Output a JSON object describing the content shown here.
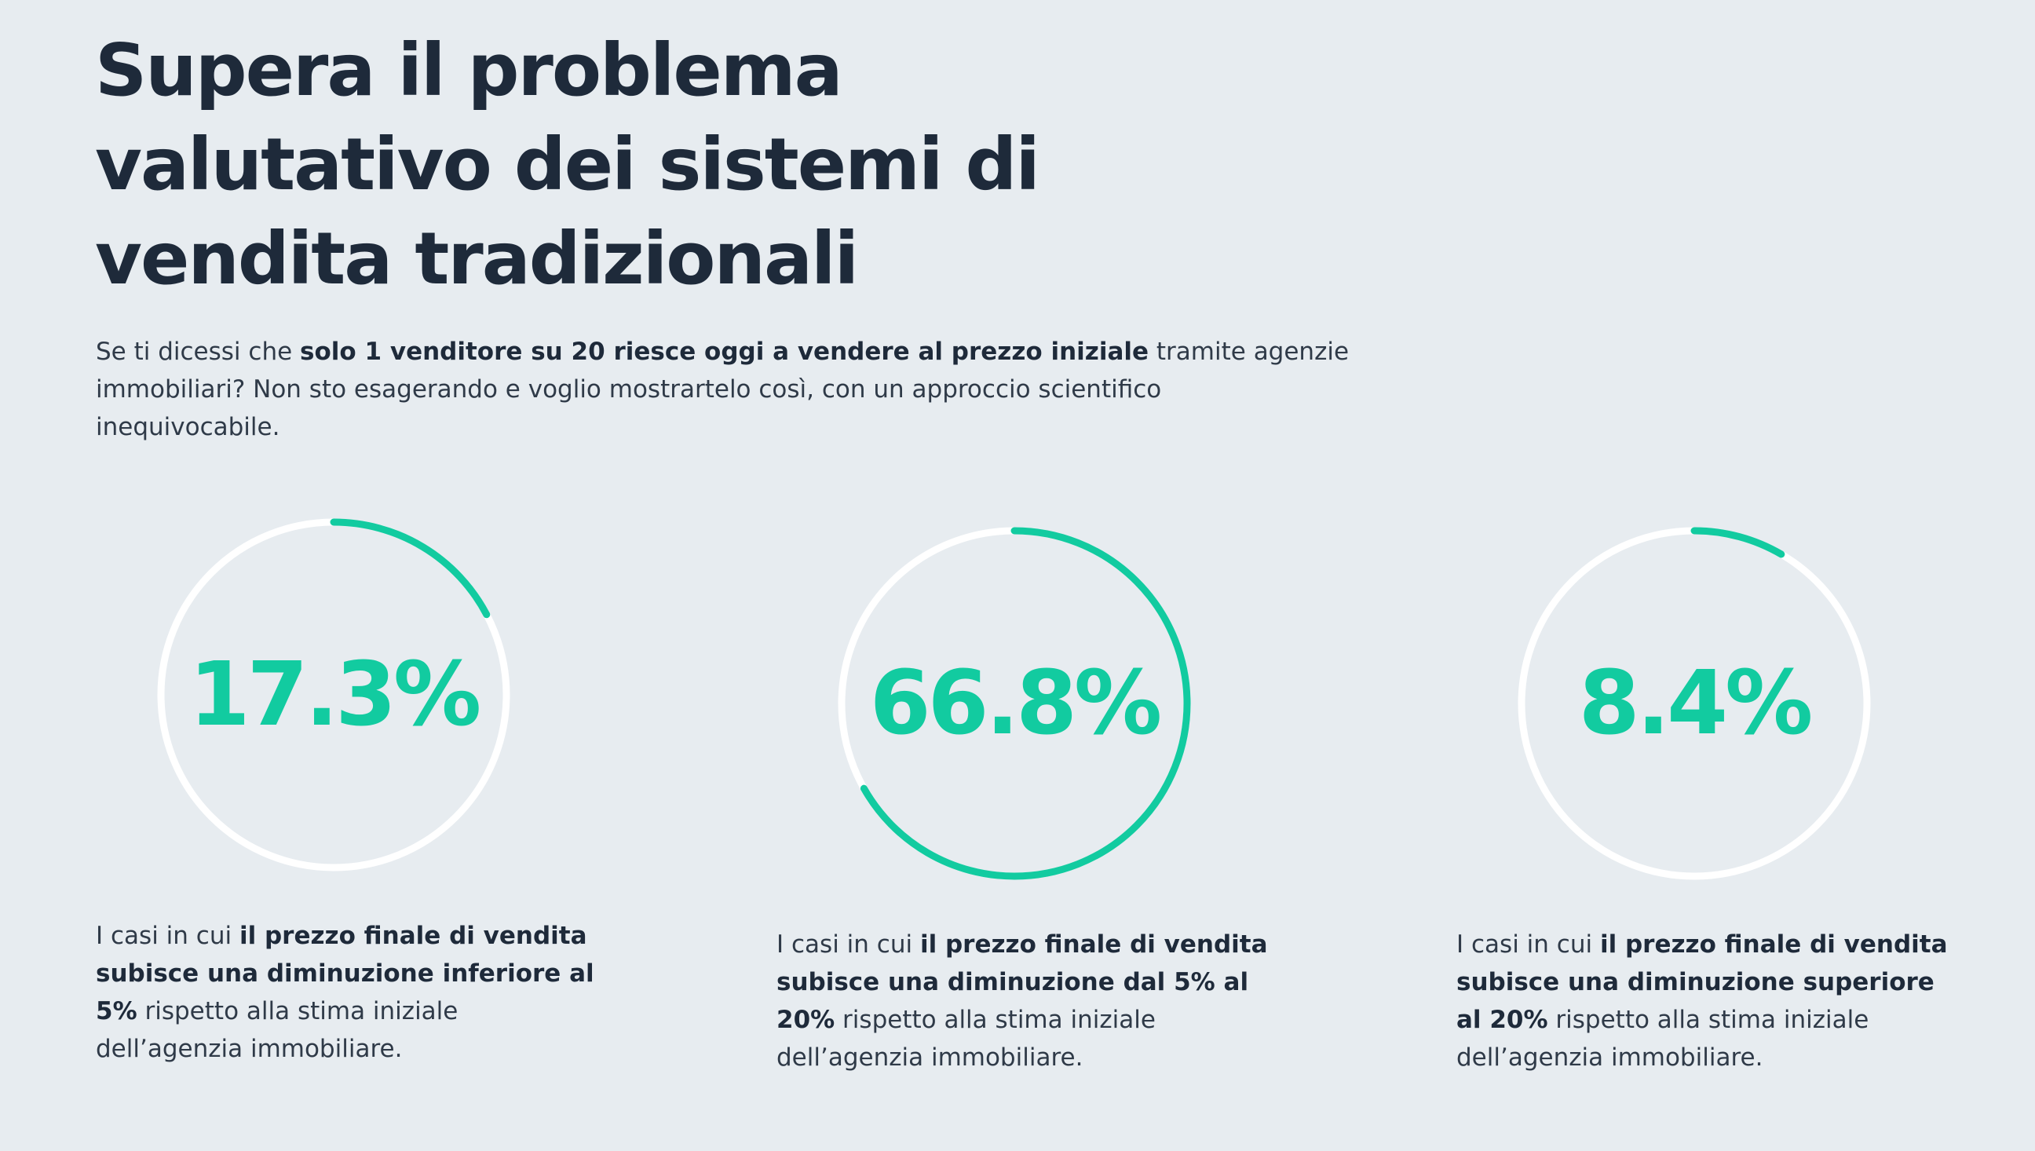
{
  "header": {
    "title_lines": [
      "Supera il problema",
      "valutativo dei sistemi di",
      "vendita tradizionali"
    ]
  },
  "intro": {
    "line1_pre": "Se ti dicessi che ",
    "line1_bold": "solo 1 venditore su 20 riesce oggi a vendere al prezzo iniziale",
    "line1_post": " tramite agenzie",
    "line2": "immobiliari? Non sto esagerando e voglio mostrartelo così, con un approccio scientifico",
    "line3": "inequivocabile."
  },
  "colors": {
    "accent": "#12cba0",
    "ring_track": "#ffffff",
    "background": "#e7ecf0",
    "text_dark": "#1e2a3a"
  },
  "stats": [
    {
      "value": 17.3,
      "label": "17.3%",
      "caption": {
        "l1_pre": "I casi in cui ",
        "l1_bold": "il prezzo finale di vendita",
        "l2_bold": "subisce una diminuzione inferiore al",
        "l3_bold": "5%",
        "l3_post": " rispetto alla stima iniziale",
        "l4": "dell’agenzia immobiliare."
      }
    },
    {
      "value": 66.8,
      "label": "66.8%",
      "caption": {
        "l1_pre": "I casi in cui ",
        "l1_bold": "il prezzo finale di vendita",
        "l2_bold": "subisce una diminuzione dal 5% al",
        "l3_bold": "20%",
        "l3_post": " rispetto alla stima iniziale",
        "l4": "dell’agenzia immobiliare."
      }
    },
    {
      "value": 8.4,
      "label": "8.4%",
      "caption": {
        "l1_pre": "I casi in cui ",
        "l1_bold": "il prezzo finale di vendita",
        "l2_bold": "subisce una diminuzione superiore",
        "l3_bold": "al 20%",
        "l3_post": " rispetto alla stima iniziale",
        "l4": "dell’agenzia immobiliare."
      }
    }
  ]
}
